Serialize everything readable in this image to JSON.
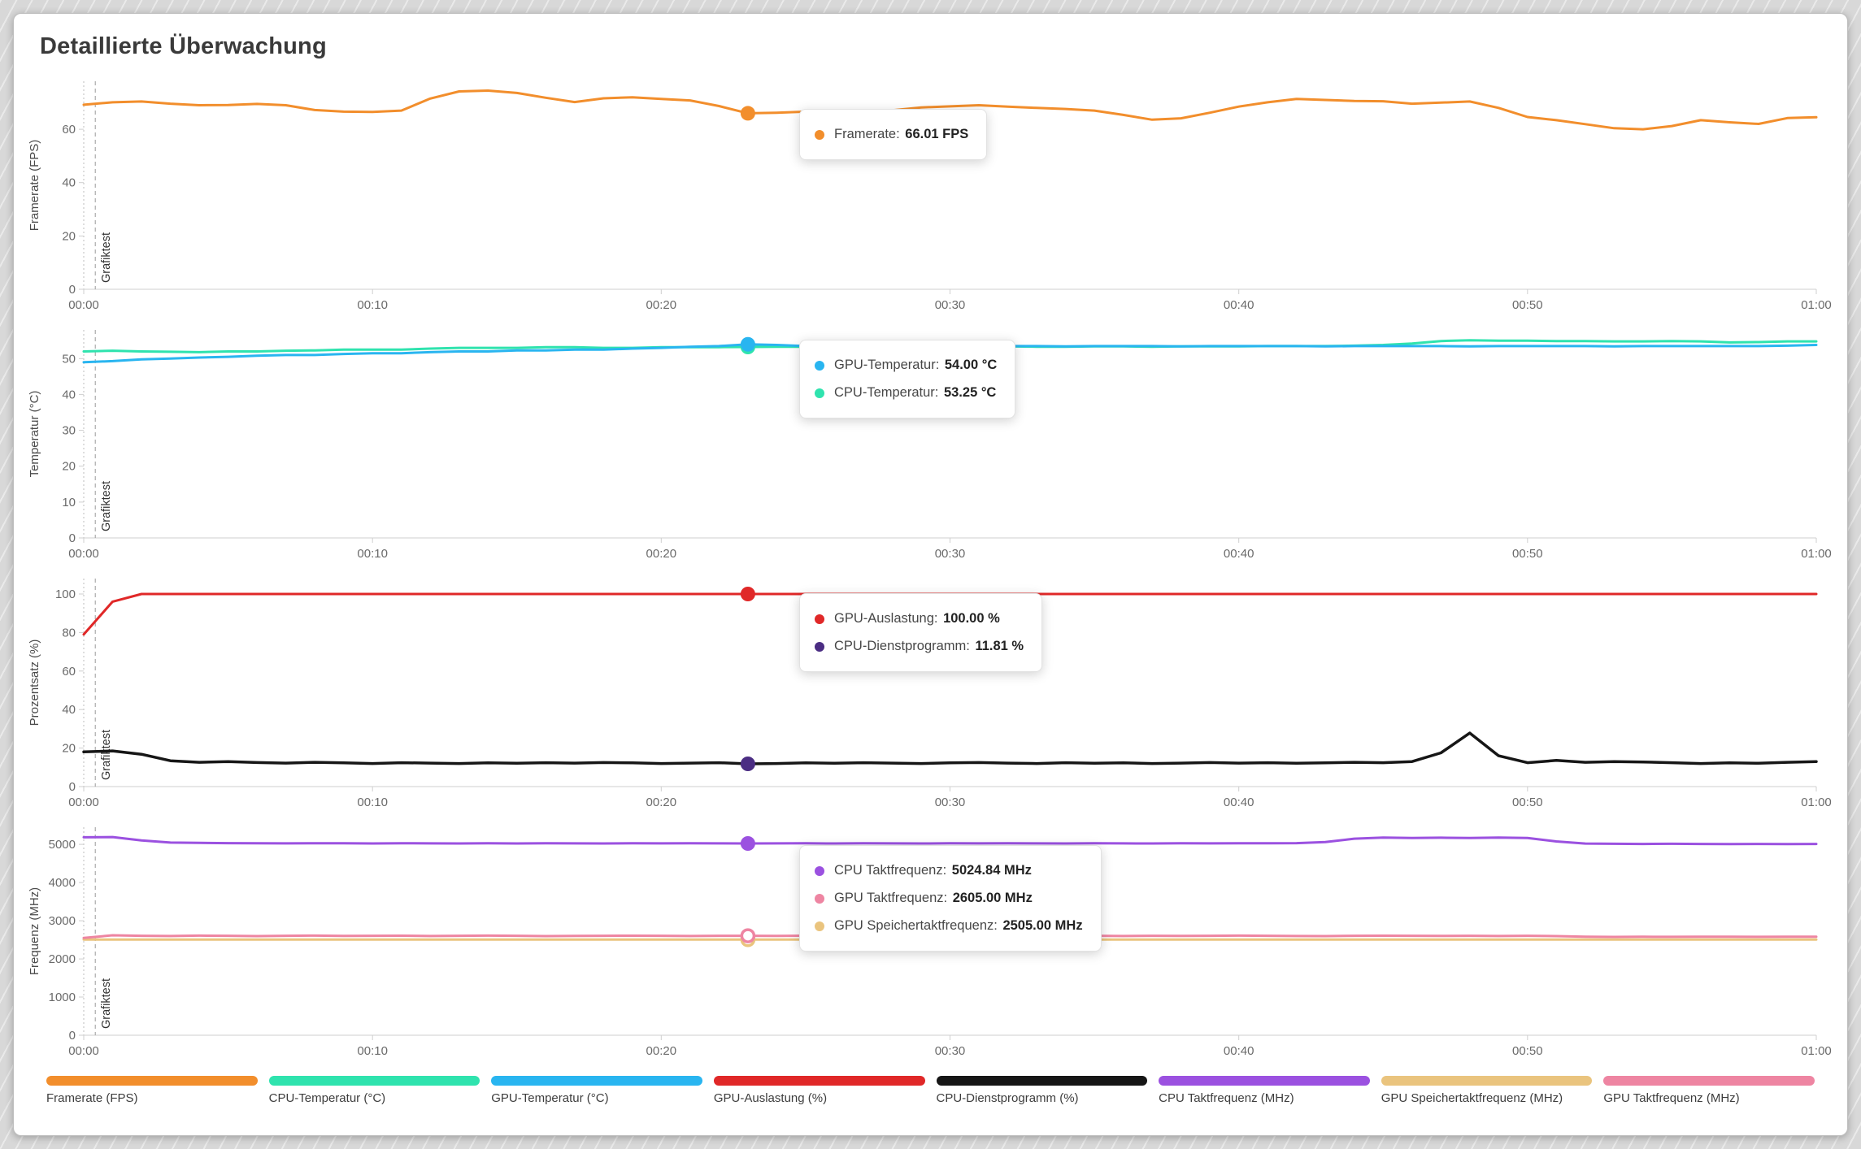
{
  "page": {
    "title": "Detaillierte Überwachung"
  },
  "time_axis": {
    "minutes": [
      0,
      1,
      2,
      3,
      4,
      5,
      6,
      7,
      8,
      9,
      10,
      11,
      12,
      13,
      14,
      15,
      16,
      17,
      18,
      19,
      20,
      21,
      22,
      23,
      24,
      25,
      26,
      27,
      28,
      29,
      30,
      31,
      32,
      33,
      34,
      35,
      36,
      37,
      38,
      39,
      40,
      41,
      42,
      43,
      44,
      45,
      46,
      47,
      48,
      49,
      50,
      51,
      52,
      53,
      54,
      55,
      56,
      57,
      58,
      59,
      60
    ],
    "tick_minutes": [
      0,
      10,
      20,
      30,
      40,
      50,
      60
    ],
    "tick_labels": [
      "00:00",
      "00:10",
      "00:20",
      "00:30",
      "00:40",
      "00:50",
      "01:00"
    ]
  },
  "cursor": {
    "time_minutes": 23
  },
  "annotation": {
    "label": "Grafiktest",
    "time_minutes": 0.4
  },
  "chart_data": [
    {
      "type": "line",
      "id": "framerate",
      "ylabel": "Framerate (FPS)",
      "ylim": [
        0,
        78
      ],
      "y_ticks": [
        0,
        20,
        40,
        60
      ],
      "grid": false,
      "series": [
        {
          "name": "Framerate (FPS)",
          "color": "#f28e2c",
          "values": [
            69.2,
            70.1,
            70.4,
            69.6,
            69.0,
            69.1,
            69.5,
            69.0,
            67.2,
            66.6,
            66.5,
            67.0,
            71.5,
            74.2,
            74.5,
            73.6,
            71.8,
            70.2,
            71.6,
            72.0,
            71.4,
            70.8,
            68.7,
            66.01,
            66.2,
            66.6,
            66.1,
            66.0,
            67.1,
            68.2,
            68.6,
            69.0,
            68.5,
            68.0,
            67.6,
            67.0,
            65.4,
            63.6,
            64.1,
            66.2,
            68.5,
            70.1,
            71.4,
            71.0,
            70.6,
            70.5,
            69.6,
            70.0,
            70.4,
            68.0,
            64.6,
            63.4,
            61.9,
            60.4,
            60.0,
            61.2,
            63.4,
            62.6,
            62.0,
            64.2,
            64.5
          ]
        }
      ],
      "tooltip": {
        "rows": [
          {
            "label": "Framerate",
            "value": "66.01 FPS",
            "color": "#f28e2c"
          }
        ]
      }
    },
    {
      "type": "line",
      "id": "temperatur",
      "ylabel": "Temperatur (°C)",
      "ylim": [
        0,
        58
      ],
      "y_ticks": [
        0,
        10,
        20,
        30,
        40,
        50
      ],
      "grid": false,
      "series": [
        {
          "name": "CPU-Temperatur (°C)",
          "color": "#2fe3ae",
          "values": [
            52.0,
            52.2,
            52.0,
            51.9,
            51.8,
            52.0,
            52.0,
            52.2,
            52.3,
            52.5,
            52.5,
            52.5,
            52.8,
            53.0,
            53.0,
            53.0,
            53.2,
            53.2,
            53.0,
            53.0,
            53.2,
            53.2,
            53.2,
            53.25,
            53.3,
            53.3,
            53.2,
            53.3,
            53.3,
            53.4,
            53.3,
            53.3,
            53.4,
            53.3,
            53.3,
            53.4,
            53.4,
            53.3,
            53.4,
            53.4,
            53.4,
            53.5,
            53.5,
            53.5,
            53.6,
            53.8,
            54.2,
            54.9,
            55.1,
            55.0,
            55.0,
            54.9,
            54.9,
            54.8,
            54.8,
            54.9,
            54.8,
            54.5,
            54.6,
            54.8,
            54.8
          ]
        },
        {
          "name": "GPU-Temperatur (°C)",
          "color": "#29b5f0",
          "values": [
            49.0,
            49.3,
            49.8,
            50.0,
            50.3,
            50.5,
            50.8,
            51.0,
            51.0,
            51.3,
            51.5,
            51.5,
            51.8,
            52.0,
            52.0,
            52.3,
            52.3,
            52.5,
            52.5,
            52.8,
            53.0,
            53.3,
            53.5,
            54.0,
            53.8,
            53.5,
            53.5,
            53.4,
            53.5,
            53.5,
            53.4,
            53.5,
            53.5,
            53.5,
            53.4,
            53.5,
            53.5,
            53.5,
            53.4,
            53.5,
            53.5,
            53.5,
            53.5,
            53.4,
            53.5,
            53.5,
            53.5,
            53.5,
            53.4,
            53.5,
            53.5,
            53.5,
            53.5,
            53.4,
            53.5,
            53.5,
            53.5,
            53.5,
            53.5,
            53.6,
            53.8
          ]
        }
      ],
      "tooltip": {
        "rows": [
          {
            "label": "GPU-Temperatur",
            "value": "54.00 °C",
            "color": "#29b5f0"
          },
          {
            "label": "CPU-Temperatur",
            "value": "53.25 °C",
            "color": "#2fe3ae"
          }
        ]
      }
    },
    {
      "type": "line",
      "id": "prozentsatz",
      "ylabel": "Prozentsatz (%)",
      "ylim": [
        0,
        108
      ],
      "y_ticks": [
        0,
        20,
        40,
        60,
        80,
        100
      ],
      "grid": false,
      "series": [
        {
          "name": "GPU-Auslastung (%)",
          "color": "#e02828",
          "values": [
            79,
            96,
            100,
            100,
            100,
            100,
            100,
            100,
            100,
            100,
            100,
            100,
            100,
            100,
            100,
            100,
            100,
            100,
            100,
            100,
            100,
            100,
            100,
            100,
            100,
            100,
            100,
            100,
            100,
            100,
            100,
            100,
            100,
            100,
            100,
            100,
            100,
            100,
            100,
            100,
            100,
            100,
            100,
            100,
            100,
            100,
            100,
            100,
            100,
            100,
            100,
            100,
            100,
            100,
            100,
            100,
            100,
            100,
            100,
            100,
            100
          ]
        },
        {
          "name": "CPU-Dienstprogramm (%)",
          "color": "#161616",
          "marker_color": "#4b2d83",
          "width": 3.5,
          "values": [
            18.0,
            18.5,
            16.8,
            13.4,
            12.6,
            13.0,
            12.5,
            12.2,
            12.6,
            12.3,
            12.0,
            12.4,
            12.2,
            12.0,
            12.3,
            12.1,
            12.4,
            12.2,
            12.5,
            12.3,
            12.0,
            12.2,
            12.4,
            11.81,
            12.0,
            12.3,
            12.1,
            12.4,
            12.2,
            12.0,
            12.3,
            12.5,
            12.2,
            12.0,
            12.4,
            12.1,
            12.3,
            12.0,
            12.2,
            12.5,
            12.2,
            12.4,
            12.1,
            12.3,
            12.6,
            12.4,
            13.0,
            17.5,
            27.8,
            16.0,
            12.4,
            13.6,
            12.6,
            13.0,
            12.8,
            12.4,
            12.0,
            12.3,
            12.1,
            12.6,
            13.0
          ]
        }
      ],
      "tooltip": {
        "rows": [
          {
            "label": "GPU-Auslastung",
            "value": "100.00 %",
            "color": "#e02828"
          },
          {
            "label": "CPU-Dienstprogramm",
            "value": "11.81 %",
            "color": "#4b2d83"
          }
        ]
      }
    },
    {
      "type": "line",
      "id": "frequenz",
      "ylabel": "Frequenz (MHz)",
      "ylim": [
        0,
        5450
      ],
      "y_ticks": [
        0,
        1000,
        2000,
        3000,
        4000,
        5000
      ],
      "grid": false,
      "series": [
        {
          "name": "GPU Speichertaktfrequenz (MHz)",
          "color": "#eac47e",
          "hollow_marker": true,
          "values": [
            2505,
            2505,
            2505,
            2505,
            2505,
            2505,
            2505,
            2505,
            2505,
            2505,
            2505,
            2505,
            2505,
            2505,
            2505,
            2505,
            2505,
            2505,
            2505,
            2505,
            2505,
            2505,
            2505,
            2505,
            2505,
            2505,
            2505,
            2505,
            2505,
            2505,
            2505,
            2505,
            2505,
            2505,
            2505,
            2505,
            2505,
            2505,
            2505,
            2505,
            2505,
            2505,
            2505,
            2505,
            2505,
            2505,
            2505,
            2505,
            2505,
            2505,
            2505,
            2505,
            2505,
            2505,
            2505,
            2505,
            2505,
            2505,
            2505,
            2505,
            2505
          ]
        },
        {
          "name": "GPU Taktfrequenz (MHz)",
          "color": "#ee85a2",
          "hollow_marker": true,
          "values": [
            2550,
            2618,
            2605,
            2600,
            2610,
            2605,
            2598,
            2605,
            2610,
            2602,
            2605,
            2608,
            2600,
            2605,
            2610,
            2605,
            2598,
            2602,
            2605,
            2608,
            2605,
            2600,
            2605,
            2605,
            2602,
            2608,
            2605,
            2600,
            2605,
            2610,
            2605,
            2602,
            2598,
            2605,
            2608,
            2605,
            2600,
            2605,
            2602,
            2605,
            2610,
            2605,
            2600,
            2598,
            2605,
            2608,
            2605,
            2602,
            2605,
            2600,
            2605,
            2598,
            2580,
            2575,
            2580,
            2578,
            2582,
            2580,
            2578,
            2582,
            2580
          ]
        },
        {
          "name": "CPU Taktfrequenz (MHz)",
          "color": "#9b51e0",
          "values": [
            5185,
            5192,
            5105,
            5048,
            5040,
            5032,
            5030,
            5026,
            5030,
            5028,
            5025,
            5030,
            5026,
            5024,
            5028,
            5025,
            5030,
            5026,
            5024,
            5028,
            5026,
            5030,
            5027,
            5024.84,
            5026,
            5028,
            5025,
            5030,
            5026,
            5024,
            5028,
            5026,
            5030,
            5027,
            5025,
            5028,
            5026,
            5024,
            5028,
            5026,
            5030,
            5028,
            5032,
            5060,
            5150,
            5178,
            5170,
            5176,
            5170,
            5180,
            5168,
            5078,
            5022,
            5015,
            5012,
            5015,
            5012,
            5010,
            5012,
            5010,
            5012
          ]
        }
      ],
      "tooltip": {
        "rows": [
          {
            "label": "CPU Taktfrequenz",
            "value": "5024.84 MHz",
            "color": "#9b51e0"
          },
          {
            "label": "GPU Taktfrequenz",
            "value": "2605.00 MHz",
            "color": "#ee85a2"
          },
          {
            "label": "GPU Speichertaktfrequenz",
            "value": "2505.00 MHz",
            "color": "#eac47e"
          }
        ]
      }
    }
  ],
  "legend": {
    "position": "bottom",
    "items": [
      {
        "label": "Framerate (FPS)",
        "color": "#f28e2c"
      },
      {
        "label": "CPU-Temperatur (°C)",
        "color": "#2fe3ae"
      },
      {
        "label": "GPU-Temperatur (°C)",
        "color": "#29b5f0"
      },
      {
        "label": "GPU-Auslastung (%)",
        "color": "#e02828"
      },
      {
        "label": "CPU-Dienstprogramm (%)",
        "color": "#161616"
      },
      {
        "label": "CPU Taktfrequenz (MHz)",
        "color": "#9b51e0"
      },
      {
        "label": "GPU Speichertaktfrequenz (MHz)",
        "color": "#eac47e"
      },
      {
        "label": "GPU Taktfrequenz (MHz)",
        "color": "#ee85a2"
      }
    ]
  }
}
